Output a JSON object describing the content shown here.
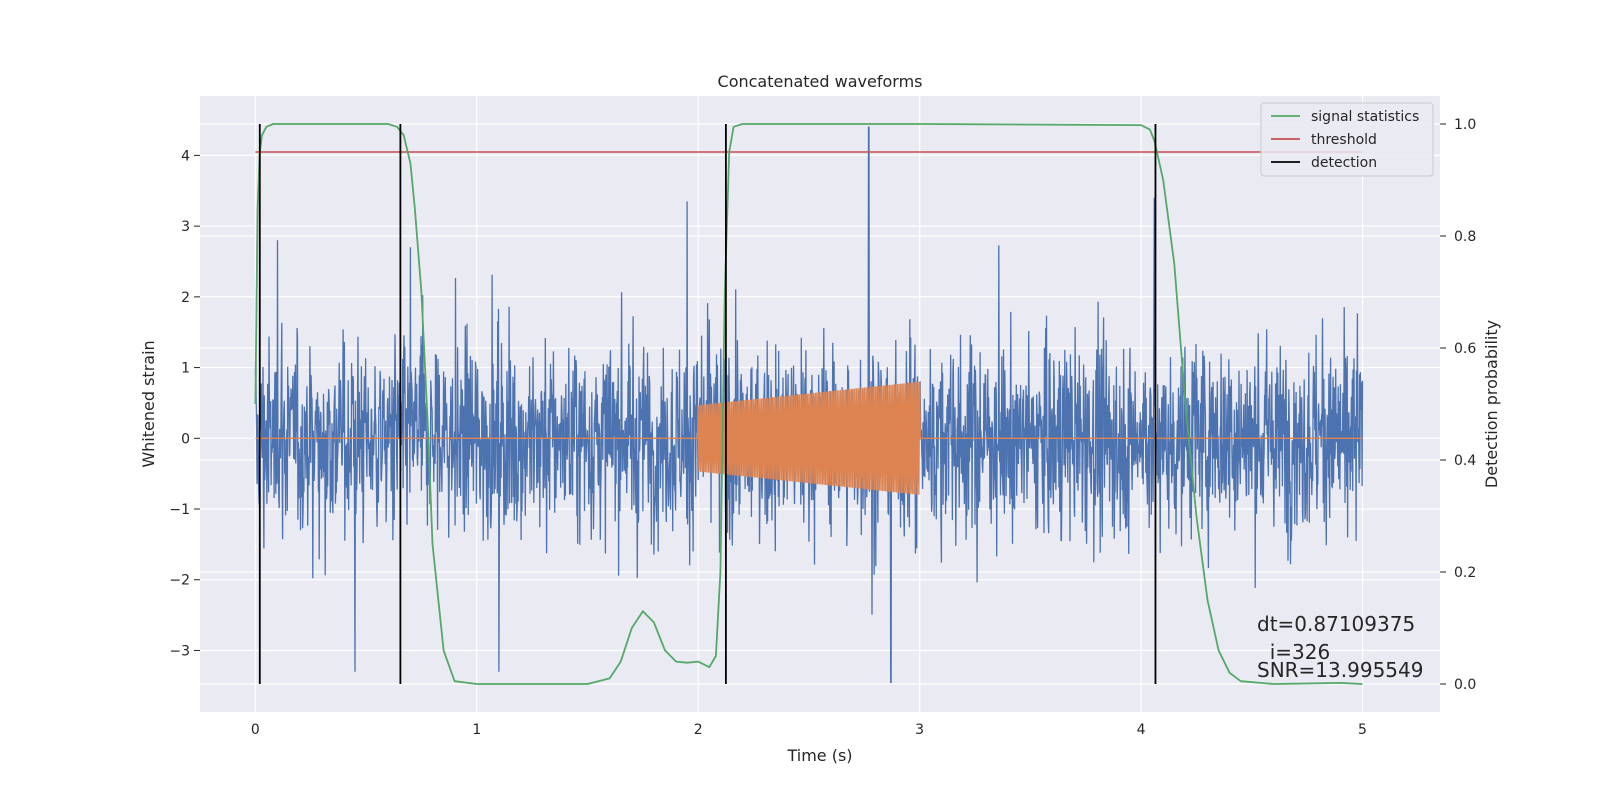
{
  "chart_data": {
    "type": "line",
    "title": "Concatenated waveforms",
    "xlabel": "Time (s)",
    "ylabel": "Whitened strain",
    "y2label": "Detection probability",
    "xlim": [
      -0.25,
      5.35
    ],
    "ylim": [
      -3.87,
      4.84
    ],
    "y2lim": [
      -0.05,
      1.05
    ],
    "xticks": [
      0,
      1,
      2,
      3,
      4,
      5
    ],
    "yticks": [
      -3,
      -2,
      -1,
      0,
      1,
      2,
      3,
      4
    ],
    "y2ticks": [
      0.0,
      0.2,
      0.4,
      0.6,
      0.8,
      1.0
    ],
    "xtick_labels": [
      "0",
      "1",
      "2",
      "3",
      "4",
      "5"
    ],
    "ytick_labels": [
      "−3",
      "−2",
      "−1",
      "0",
      "1",
      "2",
      "3",
      "4"
    ],
    "y2tick_labels": [
      "0.0",
      "0.2",
      "0.4",
      "0.6",
      "0.8",
      "1.0"
    ],
    "grid": true,
    "legend_placement": "top-right",
    "colors": {
      "background": "#eaeaf2",
      "grid": "#ffffff",
      "strain": "#4c72b0",
      "template": "#dd8452",
      "signal_statistics": "#55a868",
      "threshold": "#c44e52",
      "detection": "#000000"
    },
    "series": [
      {
        "name": "",
        "axis": "left",
        "description_kind": "noise",
        "x_range": [
          0,
          5
        ],
        "amplitude_std": 0.9,
        "peaks": [
          [
            0.1,
            2.8
          ],
          [
            0.7,
            2.7
          ],
          [
            1.95,
            3.35
          ],
          [
            2.77,
            4.4
          ],
          [
            2.87,
            -3.45
          ],
          [
            4.06,
            3.4
          ],
          [
            0.45,
            -3.3
          ],
          [
            1.1,
            -3.3
          ]
        ]
      },
      {
        "name": "",
        "axis": "left",
        "description_kind": "chirp",
        "x_range": [
          0,
          5
        ],
        "active_range": [
          2.0,
          3.0
        ],
        "amplitude_start": 0.47,
        "amplitude_end": 0.8
      },
      {
        "name": "signal statistics",
        "axis": "right",
        "x": [
          0.0,
          0.01,
          0.02,
          0.03,
          0.05,
          0.08,
          0.1,
          0.2,
          0.4,
          0.6,
          0.64,
          0.67,
          0.7,
          0.72,
          0.75,
          0.78,
          0.8,
          0.85,
          0.9,
          1.0,
          1.5,
          1.6,
          1.65,
          1.7,
          1.75,
          1.8,
          1.85,
          1.9,
          1.95,
          2.0,
          2.05,
          2.08,
          2.1,
          2.12,
          2.14,
          2.16,
          2.2,
          3.0,
          4.0,
          4.04,
          4.06,
          4.1,
          4.15,
          4.2,
          4.25,
          4.3,
          4.35,
          4.4,
          4.45,
          4.6,
          4.9,
          5.0
        ],
        "values": [
          0.5,
          0.85,
          0.95,
          0.98,
          0.995,
          1.0,
          1.0,
          1.0,
          1.0,
          1.0,
          0.995,
          0.98,
          0.93,
          0.85,
          0.7,
          0.45,
          0.25,
          0.06,
          0.005,
          0.0,
          0.0,
          0.01,
          0.04,
          0.1,
          0.13,
          0.11,
          0.06,
          0.04,
          0.038,
          0.04,
          0.03,
          0.05,
          0.2,
          0.7,
          0.95,
          0.995,
          1.0,
          1.0,
          0.998,
          0.99,
          0.97,
          0.9,
          0.75,
          0.5,
          0.3,
          0.15,
          0.06,
          0.02,
          0.005,
          0.0,
          0.002,
          0.0
        ]
      },
      {
        "name": "threshold",
        "axis": "right",
        "x": [
          0,
          5
        ],
        "values": [
          0.95,
          0.95
        ]
      },
      {
        "name": "detection",
        "axis": "right",
        "kind": "vertical_lines",
        "x": [
          0.02,
          0.655,
          2.125,
          4.065
        ],
        "range": [
          0.0,
          1.0
        ]
      }
    ],
    "annotations": [
      {
        "lines": [
          "dt=0.87109375",
          "  i=326",
          "SNR=13.995549"
        ],
        "x": 4.5,
        "y": -2.7
      }
    ]
  }
}
